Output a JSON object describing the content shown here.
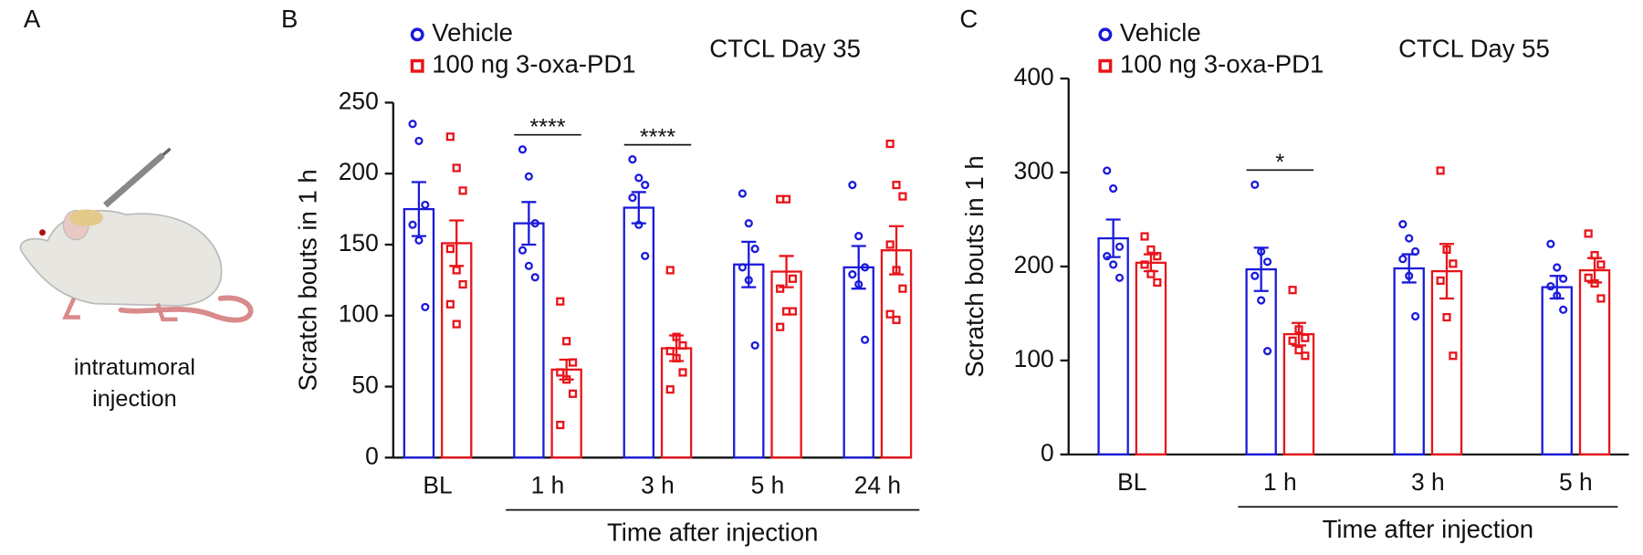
{
  "panel_labels": [
    "A",
    "B",
    "C"
  ],
  "illustration": {
    "caption": [
      "intratumoral",
      "injection"
    ]
  },
  "chart_data": [
    {
      "type": "bar",
      "subtitle": "CTCL Day 35",
      "y_label": "Scratch bouts in 1 h",
      "x_label": "Time after injection",
      "categories": [
        "BL",
        "1 h",
        "3 h",
        "5 h",
        "24 h"
      ],
      "ylim": [
        0,
        250
      ],
      "yticks": [
        0,
        50,
        100,
        150,
        200,
        250
      ],
      "significance": [
        null,
        "****",
        "****",
        null,
        null
      ],
      "series": [
        {
          "name": "Vehicle",
          "color": "#1a1adb",
          "marker": "circle",
          "values": [
            175,
            165,
            176,
            136,
            134
          ],
          "errors": [
            19,
            15,
            11,
            16,
            15
          ],
          "points": [
            [
              235,
              223,
              178,
              164,
              153,
              106
            ],
            [
              217,
              198,
              165,
              146,
              135,
              127
            ],
            [
              210,
              197,
              192,
              183,
              164,
              142
            ],
            [
              186,
              165,
              147,
              134,
              125,
              79
            ],
            [
              192,
              156,
              134,
              129,
              122,
              83
            ]
          ]
        },
        {
          "name": "100 ng 3-oxa-PD1",
          "color": "#e8141a",
          "marker": "square",
          "values": [
            151,
            62,
            77,
            131,
            146
          ],
          "errors": [
            16,
            7,
            9,
            11,
            17
          ],
          "points": [
            [
              226,
              204,
              188,
              147,
              132,
              122,
              108,
              94
            ],
            [
              110,
              82,
              67,
              60,
              55,
              45,
              23
            ],
            [
              132,
              85,
              79,
              75,
              70,
              60,
              48
            ],
            [
              182,
              182,
              126,
              119,
              103,
              103,
              92
            ],
            [
              221,
              192,
              184,
              150,
              132,
              119,
              101,
              97
            ]
          ]
        }
      ]
    },
    {
      "type": "bar",
      "subtitle": "CTCL Day 55",
      "y_label": "Scratch bouts in 1 h",
      "x_label": "Time after injection",
      "categories": [
        "BL",
        "1 h",
        "3 h",
        "5 h"
      ],
      "ylim": [
        0,
        400
      ],
      "yticks": [
        0,
        100,
        200,
        300,
        400
      ],
      "significance": [
        null,
        "*",
        null,
        null
      ],
      "series": [
        {
          "name": "Vehicle",
          "color": "#1a1adb",
          "marker": "circle",
          "values": [
            230,
            197,
            198,
            178
          ],
          "errors": [
            20,
            23,
            15,
            12
          ],
          "points": [
            [
              302,
              283,
              221,
              211,
              202,
              188
            ],
            [
              287,
              216,
              205,
              190,
              164,
              110
            ],
            [
              245,
              230,
              216,
              208,
              190,
              147
            ],
            [
              224,
              199,
              187,
              179,
              169,
              154
            ]
          ]
        },
        {
          "name": "100 ng 3-oxa-PD1",
          "color": "#e8141a",
          "marker": "square",
          "values": [
            204,
            128,
            195,
            196
          ],
          "errors": [
            9,
            12,
            29,
            13
          ],
          "points": [
            [
              232,
              218,
              211,
              202,
              192,
              183
            ],
            [
              175,
              133,
              124,
              121,
              111,
              105
            ],
            [
              302,
              218,
              203,
              185,
              146,
              105
            ],
            [
              235,
              212,
              202,
              188,
              182,
              166
            ]
          ]
        }
      ]
    }
  ]
}
